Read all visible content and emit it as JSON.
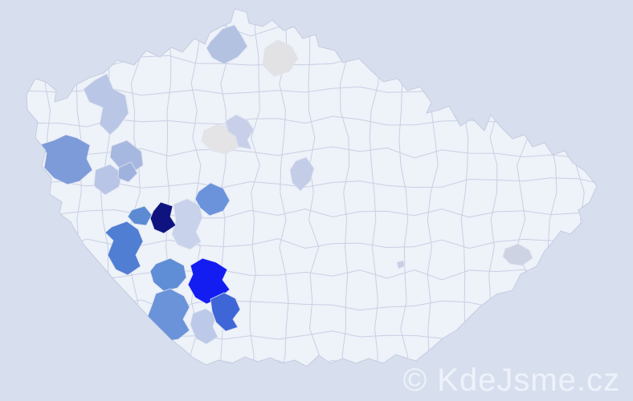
{
  "watermark": {
    "text": "© KdeJsme.cz",
    "color": "#eef2fa"
  },
  "map": {
    "type": "choropleth-district-map",
    "country": "Czech Republic",
    "sea_color": "#d7dfee",
    "base_district_color": "#eef2f9",
    "district_border_color": "#c9cfe4",
    "regions": [
      {
        "id": "region-01",
        "color": "#b4c2e2"
      },
      {
        "id": "region-02",
        "color": "#e2e2e5"
      },
      {
        "id": "region-03",
        "color": "#bac6e5"
      },
      {
        "id": "region-04",
        "color": "#7e9bd9"
      },
      {
        "id": "region-05",
        "color": "#a7b8e0"
      },
      {
        "id": "region-06",
        "color": "#b9c5e6"
      },
      {
        "id": "region-07",
        "color": "#9fb2de"
      },
      {
        "id": "region-08",
        "color": "#e4e3e6"
      },
      {
        "id": "region-09",
        "color": "#c7d0e8"
      },
      {
        "id": "region-10",
        "color": "#c3cde8"
      },
      {
        "id": "region-11",
        "color": "#6b93dc"
      },
      {
        "id": "region-12",
        "color": "#c8d2ea"
      },
      {
        "id": "region-13",
        "color": "#0f137f"
      },
      {
        "id": "region-14",
        "color": "#5c8bd3"
      },
      {
        "id": "region-15",
        "color": "#4f7ed3"
      },
      {
        "id": "region-16",
        "color": "#5f8dd6"
      },
      {
        "id": "region-17",
        "color": "#131df2"
      },
      {
        "id": "region-18",
        "color": "#6b93da"
      },
      {
        "id": "region-19",
        "color": "#bcc9e8"
      },
      {
        "id": "region-20",
        "color": "#3f66d6"
      },
      {
        "id": "region-21",
        "color": "#cdd3e2"
      },
      {
        "id": "region-22",
        "color": "#c6cfe4"
      }
    ]
  }
}
